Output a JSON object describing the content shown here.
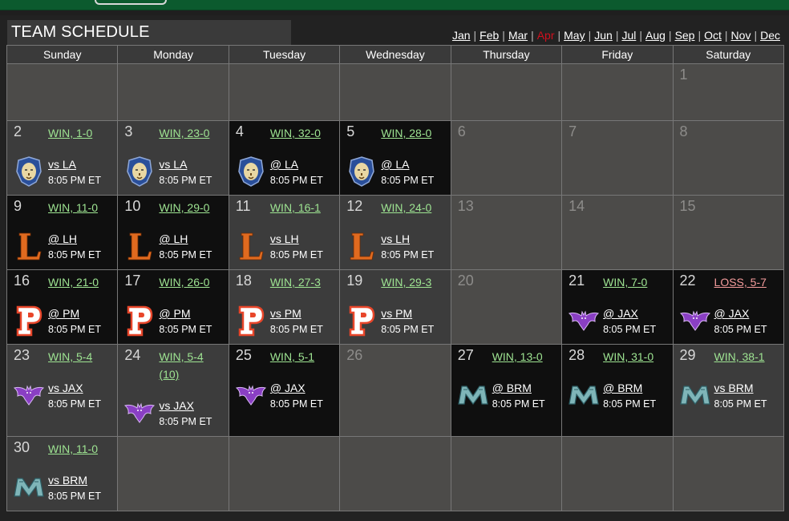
{
  "header": {
    "title": "TEAM SCHEDULE"
  },
  "months": [
    "Jan",
    "Feb",
    "Mar",
    "Apr",
    "May",
    "Jun",
    "Jul",
    "Aug",
    "Sep",
    "Oct",
    "Nov",
    "Dec"
  ],
  "current_month": "Apr",
  "weekdays": [
    "Sunday",
    "Monday",
    "Tuesday",
    "Wednesday",
    "Thursday",
    "Friday",
    "Saturday"
  ],
  "colors": {
    "win": "#9ee492",
    "loss": "#f39b9b",
    "current_month": "#d0101e",
    "top_bar": "#0c5a2e"
  },
  "weeks": [
    [
      {
        "empty": true
      },
      {
        "empty": true
      },
      {
        "empty": true
      },
      {
        "empty": true
      },
      {
        "empty": true
      },
      {
        "empty": true
      },
      {
        "day": "1"
      }
    ],
    [
      {
        "day": "2",
        "result": "WIN, 1-0",
        "matchup": "vs LA",
        "time": "8:05 PM ET",
        "icon": "lion-logo-icon",
        "shade": "game"
      },
      {
        "day": "3",
        "result": "WIN, 23-0",
        "matchup": "vs LA",
        "time": "8:05 PM ET",
        "icon": "lion-logo-icon",
        "shade": "game"
      },
      {
        "day": "4",
        "result": "WIN, 32-0",
        "matchup": "@ LA",
        "time": "8:05 PM ET",
        "icon": "lion-logo-icon",
        "shade": "dark"
      },
      {
        "day": "5",
        "result": "WIN, 28-0",
        "matchup": "@ LA",
        "time": "8:05 PM ET",
        "icon": "lion-logo-icon",
        "shade": "dark"
      },
      {
        "day": "6"
      },
      {
        "day": "7"
      },
      {
        "day": "8"
      }
    ],
    [
      {
        "day": "9",
        "result": "WIN, 11-0",
        "matchup": "@ LH",
        "time": "8:05 PM ET",
        "icon": "letter-l-logo-icon",
        "shade": "dark"
      },
      {
        "day": "10",
        "result": "WIN, 29-0",
        "matchup": "@ LH",
        "time": "8:05 PM ET",
        "icon": "letter-l-logo-icon",
        "shade": "dark"
      },
      {
        "day": "11",
        "result": "WIN, 16-1",
        "matchup": "vs LH",
        "time": "8:05 PM ET",
        "icon": "letter-l-logo-icon",
        "shade": "game"
      },
      {
        "day": "12",
        "result": "WIN, 24-0",
        "matchup": "vs LH",
        "time": "8:05 PM ET",
        "icon": "letter-l-logo-icon",
        "shade": "game"
      },
      {
        "day": "13"
      },
      {
        "day": "14"
      },
      {
        "day": "15"
      }
    ],
    [
      {
        "day": "16",
        "result": "WIN, 21-0",
        "matchup": "@ PM",
        "time": "8:05 PM ET",
        "icon": "letter-p-logo-icon",
        "shade": "dark"
      },
      {
        "day": "17",
        "result": "WIN, 26-0",
        "matchup": "@ PM",
        "time": "8:05 PM ET",
        "icon": "letter-p-logo-icon",
        "shade": "dark"
      },
      {
        "day": "18",
        "result": "WIN, 27-3",
        "matchup": "vs PM",
        "time": "8:05 PM ET",
        "icon": "letter-p-logo-icon",
        "shade": "game"
      },
      {
        "day": "19",
        "result": "WIN, 29-3",
        "matchup": "vs PM",
        "time": "8:05 PM ET",
        "icon": "letter-p-logo-icon",
        "shade": "game"
      },
      {
        "day": "20"
      },
      {
        "day": "21",
        "result": "WIN, 7-0",
        "matchup": "@ JAX",
        "time": "8:05 PM ET",
        "icon": "bat-logo-icon",
        "shade": "dark"
      },
      {
        "day": "22",
        "result": "LOSS, 5-7",
        "loss": true,
        "matchup": "@ JAX",
        "time": "8:05 PM ET",
        "icon": "bat-logo-icon",
        "shade": "dark"
      }
    ],
    [
      {
        "day": "23",
        "result": "WIN, 5-4",
        "matchup": "vs JAX",
        "time": "8:05 PM ET",
        "icon": "bat-logo-icon",
        "shade": "game"
      },
      {
        "day": "24",
        "result": "WIN, 5-4\n(10)",
        "tall": true,
        "matchup": "vs JAX",
        "time": "8:05 PM ET",
        "icon": "bat-logo-icon",
        "shade": "game"
      },
      {
        "day": "25",
        "result": "WIN, 5-1",
        "matchup": "@ JAX",
        "time": "8:05 PM ET",
        "icon": "bat-logo-icon",
        "shade": "dark"
      },
      {
        "day": "26"
      },
      {
        "day": "27",
        "result": "WIN, 13-0",
        "matchup": "@ BRM",
        "time": "8:05 PM ET",
        "icon": "letter-m-logo-icon",
        "shade": "dark"
      },
      {
        "day": "28",
        "result": "WIN, 31-0",
        "matchup": "@ BRM",
        "time": "8:05 PM ET",
        "icon": "letter-m-logo-icon",
        "shade": "dark"
      },
      {
        "day": "29",
        "result": "WIN, 38-1",
        "matchup": "vs BRM",
        "time": "8:05 PM ET",
        "icon": "letter-m-logo-icon",
        "shade": "game"
      }
    ],
    [
      {
        "day": "30",
        "result": "WIN, 11-0",
        "matchup": "vs BRM",
        "time": "8:05 PM ET",
        "icon": "letter-m-logo-icon",
        "shade": "game"
      },
      {
        "empty": true
      },
      {
        "empty": true
      },
      {
        "empty": true
      },
      {
        "empty": true
      },
      {
        "empty": true
      },
      {
        "empty": true
      }
    ]
  ]
}
